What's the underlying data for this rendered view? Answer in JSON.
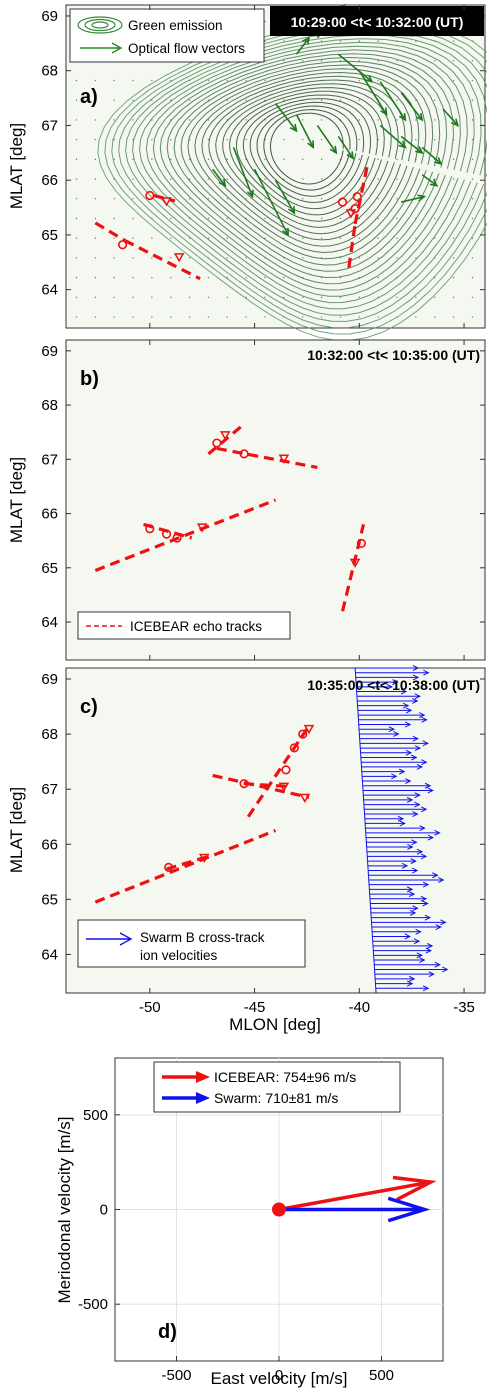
{
  "colors": {
    "red": "#ee1111",
    "blue": "#1111ee",
    "green": "#2a8a2a",
    "contour": "#3a7a50",
    "bg": "#f4f8f1"
  },
  "xlabel": "MLON [deg]",
  "chart_data": [
    {
      "panel": "a)",
      "type": "contour",
      "time_label": "10:29:00 <t< 10:32:00 (UT)",
      "ylabel": "MLAT [deg]",
      "yticks": [
        64,
        65,
        66,
        67,
        68,
        69
      ],
      "xlim": [
        -54,
        -34
      ],
      "ylim": [
        63.3,
        69.2
      ],
      "legend": [
        {
          "label": "Green emission",
          "icon": "contour-ellipses-icon"
        },
        {
          "label": "Optical flow vectors",
          "icon": "green-arrow-icon"
        }
      ],
      "red_segments": [
        {
          "x": [
            -49.8,
            -48.8
          ],
          "y": [
            65.72,
            65.62
          ]
        },
        {
          "x": [
            -52.6,
            -51.2
          ],
          "y": [
            65.22,
            64.9
          ]
        },
        {
          "x": [
            -51.2,
            -47.6
          ],
          "y": [
            64.9,
            64.2
          ]
        },
        {
          "x": [
            -40.5,
            -40.2
          ],
          "y": [
            64.4,
            65.2
          ]
        },
        {
          "x": [
            -40.2,
            -39.6
          ],
          "y": [
            65.2,
            66.3
          ]
        }
      ],
      "circles": [
        [
          -50,
          65.72
        ],
        [
          -51.3,
          64.82
        ],
        [
          -40.8,
          65.6
        ],
        [
          -40.2,
          65.48
        ],
        [
          -40.1,
          65.7
        ]
      ],
      "triangles": [
        [
          -49.2,
          65.62
        ],
        [
          -48.6,
          64.6
        ],
        [
          -40.4,
          65.4
        ]
      ],
      "flow_vectors": [
        {
          "x": [
            -42,
            68.6
          ],
          "d": [
            1.3,
            0.6
          ]
        },
        {
          "x": [
            -41,
            68.3
          ],
          "d": [
            1.6,
            -0.5
          ]
        },
        {
          "x": [
            -40,
            68.0
          ],
          "d": [
            1.3,
            -0.8
          ]
        },
        {
          "x": [
            -39,
            67.8
          ],
          "d": [
            1.2,
            -0.7
          ]
        },
        {
          "x": [
            -38,
            67.6
          ],
          "d": [
            1.0,
            -0.5
          ]
        },
        {
          "x": [
            -44,
            67.4
          ],
          "d": [
            1.0,
            -0.5
          ]
        },
        {
          "x": [
            -43,
            67.2
          ],
          "d": [
            0.8,
            -0.6
          ]
        },
        {
          "x": [
            -42,
            67.0
          ],
          "d": [
            0.9,
            -0.5
          ]
        },
        {
          "x": [
            -41,
            66.8
          ],
          "d": [
            0.7,
            -0.4
          ]
        },
        {
          "x": [
            -39,
            67.0
          ],
          "d": [
            1.2,
            -0.4
          ]
        },
        {
          "x": [
            -38,
            66.8
          ],
          "d": [
            1.0,
            -0.3
          ]
        },
        {
          "x": [
            -37,
            66.6
          ],
          "d": [
            0.9,
            -0.3
          ]
        },
        {
          "x": [
            -46,
            66.6
          ],
          "d": [
            0.9,
            -0.9
          ]
        },
        {
          "x": [
            -45,
            66.2
          ],
          "d": [
            1.6,
            -1.2
          ]
        },
        {
          "x": [
            -44,
            66.0
          ],
          "d": [
            0.9,
            -0.6
          ]
        },
        {
          "x": [
            -38,
            65.6
          ],
          "d": [
            1.1,
            0.1
          ]
        },
        {
          "x": [
            -37,
            66.1
          ],
          "d": [
            0.7,
            -0.2
          ]
        },
        {
          "x": [
            -36,
            67.3
          ],
          "d": [
            0.7,
            -0.3
          ]
        },
        {
          "x": [
            -43,
            68.3
          ],
          "d": [
            0.6,
            0.3
          ]
        },
        {
          "x": [
            -47,
            66.2
          ],
          "d": [
            0.6,
            -0.3
          ]
        }
      ]
    },
    {
      "panel": "b)",
      "type": "line",
      "time_label": "10:32:00 <t< 10:35:00 (UT)",
      "ylabel": "MLAT [deg]",
      "yticks": [
        64,
        65,
        66,
        67,
        68,
        69
      ],
      "xlim": [
        -54,
        -34
      ],
      "ylim": [
        63.3,
        69.2
      ],
      "legend": [
        {
          "label": "ICEBEAR echo tracks",
          "icon": "red-dashed-line-icon"
        }
      ],
      "red_segments": [
        {
          "x": [
            -50.3,
            -48.0
          ],
          "y": [
            65.8,
            65.55
          ]
        },
        {
          "x": [
            -52.6,
            -44.0
          ],
          "y": [
            64.95,
            66.25
          ]
        },
        {
          "x": [
            -46.8,
            -42.0
          ],
          "y": [
            67.2,
            66.85
          ]
        },
        {
          "x": [
            -47.2,
            -45.5
          ],
          "y": [
            67.1,
            67.65
          ]
        },
        {
          "x": [
            -40.8,
            -39.8
          ],
          "y": [
            64.2,
            65.8
          ]
        }
      ],
      "circles": [
        [
          -50,
          65.72
        ],
        [
          -49.2,
          65.62
        ],
        [
          -48.7,
          65.55
        ],
        [
          -46.8,
          67.3
        ],
        [
          -45.5,
          67.1
        ],
        [
          -39.9,
          65.45
        ]
      ],
      "triangles": [
        [
          -47.5,
          65.75
        ],
        [
          -46.4,
          67.45
        ],
        [
          -43.6,
          67.02
        ],
        [
          -40.2,
          65.1
        ]
      ]
    },
    {
      "panel": "c)",
      "type": "line",
      "time_label": "10:35:00 <t< 10:38:00 (UT)",
      "ylabel": "MLAT [deg]",
      "yticks": [
        64,
        65,
        66,
        67,
        68,
        69
      ],
      "xlabel": "MLON [deg]",
      "xticks": [
        -50,
        -45,
        -40,
        -35
      ],
      "xlim": [
        -54,
        -34
      ],
      "ylim": [
        63.3,
        69.2
      ],
      "legend": [
        {
          "label": "Swarm B cross-track\nion velocities",
          "icon": "blue-arrow-icon"
        }
      ],
      "red_segments": [
        {
          "x": [
            -52.6,
            -44.0
          ],
          "y": [
            64.95,
            66.25
          ]
        },
        {
          "x": [
            -49.2,
            -47.2
          ],
          "y": [
            65.55,
            65.78
          ]
        },
        {
          "x": [
            -47.0,
            -42.4
          ],
          "y": [
            67.25,
            66.85
          ]
        },
        {
          "x": [
            -45.3,
            -42.4
          ],
          "y": [
            66.5,
            68.15
          ]
        },
        {
          "x": [
            -45.5,
            -43.4
          ],
          "y": [
            67.1,
            67.05
          ]
        }
      ],
      "circles": [
        [
          -49.1,
          65.58
        ],
        [
          -45.5,
          67.1
        ],
        [
          -43.5,
          67.35
        ],
        [
          -43.1,
          67.75
        ],
        [
          -42.7,
          68.0
        ]
      ],
      "triangles": [
        [
          -47.4,
          65.76
        ],
        [
          -43.6,
          67.05
        ],
        [
          -42.6,
          66.85
        ],
        [
          -42.4,
          68.1
        ]
      ],
      "swarm_track": {
        "x": [
          -40.2,
          -39.2
        ],
        "y": [
          69.2,
          63.3
        ]
      }
    },
    {
      "panel": "d)",
      "type": "vector",
      "xlabel": "East velocity [m/s]",
      "ylabel": "Meriodonal velocity [m/s]",
      "xticks": [
        -500,
        0,
        500
      ],
      "yticks": [
        -500,
        0,
        500
      ],
      "xlim": [
        -800,
        800
      ],
      "ylim": [
        -800,
        800
      ],
      "legend": [
        {
          "label": "ICEBEAR: 754±96 m/s",
          "color": "red"
        },
        {
          "label": "Swarm: 710±81 m/s",
          "color": "blue"
        }
      ],
      "vectors": [
        {
          "name": "ICEBEAR",
          "east": 740,
          "north": 145,
          "color": "red"
        },
        {
          "name": "Swarm",
          "east": 710,
          "north": 0,
          "color": "blue"
        }
      ]
    }
  ]
}
